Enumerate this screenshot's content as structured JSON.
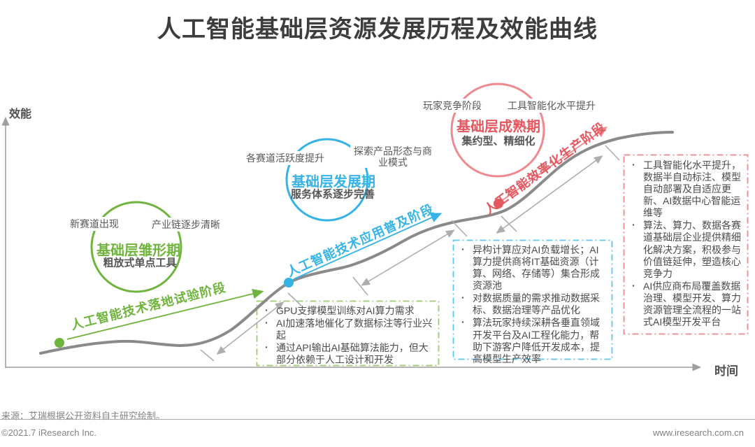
{
  "title": "人工智能基础层资源发展历程及效能曲线",
  "axes": {
    "y_label": "效能",
    "x_label": "时间"
  },
  "stages": [
    {
      "name": "基础层雏形期",
      "subtitle": "粗放式单点工具",
      "label_left": "新赛道出现",
      "label_right": "产业链逐步清晰",
      "phase_label": "人工智能技术落地试验阶段",
      "color": "#6FB43C",
      "bullets": [
        "GPU支撑模型训练对AI算力需求",
        "AI加速落地催化了数据标注等行业兴起",
        "通过API输出AI基础算法能力，但大部分依赖于人工设计和开发"
      ]
    },
    {
      "name": "基础层发展期",
      "subtitle": "服务体系逐步完善",
      "label_left": "各赛道活跃度提升",
      "label_right": "探索产品形态与商业模式",
      "phase_label": "人工智能技术应用普及阶段",
      "color": "#36B3E6",
      "bullets": [
        "异构计算应对AI负载增长；AI算力提供商将IT基础资源（计算、网络、存储等）集合形成资源池",
        "对数据质量的需求推动数据采标、数据治理等产品优化",
        "算法玩家持续深耕各垂直领域开发平台及AI工程化能力，帮助下游客户降低开发成本，提高模型生产效率"
      ]
    },
    {
      "name": "基础层成熟期",
      "subtitle": "集约型、精细化",
      "label_left": "玩家竞争阶段",
      "label_right": "工具智能化水平提升",
      "phase_label": "人工智能效率化生产阶段",
      "color": "#E4575E",
      "bullets": [
        "工具智能化水平提升，数据半自动标注、模型自动部署及自适应更新、AI数据中心智能运维等",
        "算法、算力、数据各赛道基础层企业提供精细化解决方案，积极参与价值链延伸，塑造核心竞争力",
        "AI供应商布局覆盖数据治理、模型开发、算力资源管理全流程的一站式AI模型开发平台"
      ]
    }
  ],
  "footer": {
    "source": "来源：艾瑞根据公开资料自主研究绘制。",
    "copyright": "©2021.7 iResearch Inc.",
    "website": "www.iresearch.com.cn"
  },
  "colors": {
    "green": "#6FB43C",
    "green_light": "#9CCB6B",
    "blue": "#36B3E6",
    "blue_light": "#5FC6EC",
    "red": "#E4575E",
    "red_light": "#EE8A8F",
    "curve_gray": "#8A8A8A",
    "arrow_gray": "#ADADAD",
    "axis_gray": "#9E9E9E",
    "title_dark": "#3D3D3D",
    "text_dark": "#4B4B4B",
    "footer_gray": "#828282"
  }
}
